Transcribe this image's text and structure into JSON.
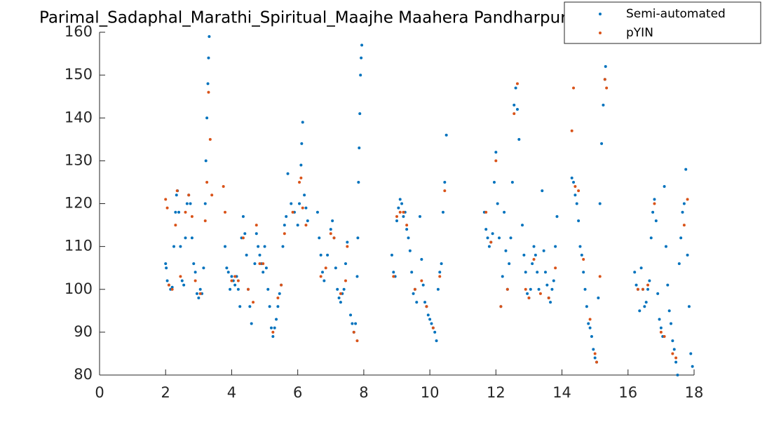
{
  "chart_data": {
    "type": "scatter",
    "title": "Parimal_Sadaphal_Marathi_Spiritual_Maajhe Maahera Pandharpur",
    "xlim": [
      0,
      18
    ],
    "xticks": [
      0,
      2,
      4,
      6,
      8,
      10,
      12,
      14,
      16,
      18
    ],
    "ylim": [
      80,
      160
    ],
    "yticks": [
      80,
      90,
      100,
      110,
      120,
      130,
      140,
      150,
      160
    ],
    "legend": "northeast",
    "series": [
      {
        "name": "Semi-automated",
        "color": "#0072BD",
        "x": [
          2.0,
          2.02,
          2.05,
          2.1,
          2.15,
          2.2,
          2.25,
          2.3,
          2.33,
          2.36,
          2.4,
          2.45,
          2.5,
          2.55,
          2.6,
          2.65,
          2.7,
          2.75,
          2.8,
          2.85,
          2.9,
          2.95,
          3.0,
          3.05,
          3.1,
          3.15,
          3.2,
          3.22,
          3.25,
          3.28,
          3.3,
          3.32,
          3.8,
          3.85,
          3.9,
          3.95,
          4.0,
          4.05,
          4.1,
          4.15,
          4.2,
          4.25,
          4.3,
          4.35,
          4.4,
          4.45,
          4.5,
          4.55,
          4.6,
          4.7,
          4.75,
          4.8,
          4.85,
          4.9,
          4.95,
          5.0,
          5.05,
          5.1,
          5.15,
          5.2,
          5.25,
          5.3,
          5.35,
          5.4,
          5.45,
          5.5,
          5.55,
          5.6,
          5.65,
          5.7,
          5.8,
          5.9,
          6.0,
          6.05,
          6.1,
          6.12,
          6.15,
          6.2,
          6.25,
          6.3,
          6.6,
          6.65,
          6.7,
          6.75,
          6.8,
          6.9,
          7.0,
          7.05,
          7.1,
          7.15,
          7.2,
          7.25,
          7.3,
          7.35,
          7.4,
          7.45,
          7.5,
          7.6,
          7.65,
          7.7,
          7.75,
          7.8,
          7.82,
          7.84,
          7.86,
          7.88,
          7.9,
          7.92,
          7.94,
          8.85,
          8.9,
          8.95,
          9.0,
          9.05,
          9.1,
          9.15,
          9.2,
          9.25,
          9.3,
          9.35,
          9.4,
          9.45,
          9.5,
          9.55,
          9.6,
          9.7,
          9.75,
          9.8,
          9.85,
          9.9,
          9.95,
          10.0,
          10.05,
          10.1,
          10.15,
          10.2,
          10.25,
          10.3,
          10.35,
          10.4,
          10.45,
          10.5,
          11.65,
          11.7,
          11.75,
          11.8,
          11.85,
          11.9,
          11.95,
          12.0,
          12.05,
          12.1,
          12.15,
          12.2,
          12.25,
          12.3,
          12.35,
          12.4,
          12.45,
          12.5,
          12.55,
          12.6,
          12.65,
          12.7,
          12.8,
          12.85,
          12.9,
          12.95,
          13.0,
          13.05,
          13.1,
          13.15,
          13.2,
          13.25,
          13.3,
          13.4,
          13.45,
          13.5,
          13.55,
          13.6,
          13.65,
          13.7,
          13.75,
          13.8,
          13.85,
          14.3,
          14.35,
          14.4,
          14.45,
          14.5,
          14.55,
          14.6,
          14.65,
          14.7,
          14.75,
          14.8,
          14.85,
          14.9,
          14.95,
          15.0,
          15.05,
          15.1,
          15.15,
          15.2,
          15.25,
          15.3,
          15.32,
          16.2,
          16.25,
          16.3,
          16.35,
          16.4,
          16.45,
          16.5,
          16.55,
          16.6,
          16.65,
          16.7,
          16.75,
          16.8,
          16.85,
          16.9,
          16.95,
          17.0,
          17.05,
          17.1,
          17.15,
          17.2,
          17.25,
          17.3,
          17.35,
          17.4,
          17.45,
          17.5,
          17.55,
          17.6,
          17.65,
          17.7,
          17.75,
          17.8,
          17.85,
          17.9,
          17.95
        ],
        "values": [
          106,
          105,
          102,
          101,
          100,
          100.5,
          110,
          118,
          122,
          123,
          118,
          110,
          102,
          101,
          112,
          120,
          122,
          120,
          112,
          106,
          104,
          99,
          98,
          100,
          99,
          105,
          120,
          130,
          140,
          148,
          154,
          159,
          110,
          105,
          104,
          100,
          103,
          102,
          101,
          103,
          100,
          96,
          112,
          117,
          113,
          108,
          100,
          96,
          92,
          106,
          113,
          110,
          108,
          106,
          104,
          110,
          105,
          100,
          96,
          91,
          89,
          91,
          93,
          96,
          99,
          101,
          110,
          115,
          117,
          127,
          120,
          118,
          115,
          120,
          129,
          134,
          139,
          122,
          119,
          116,
          118,
          112,
          108,
          104,
          102,
          108,
          114,
          116,
          112,
          105,
          100,
          98,
          97,
          99,
          100,
          106,
          111,
          94,
          92,
          90,
          92,
          103,
          112,
          125,
          133,
          141,
          150,
          154,
          157,
          108,
          104,
          103,
          116,
          119,
          121,
          120,
          117,
          118,
          114,
          112,
          109,
          104,
          99,
          100,
          97,
          117,
          107,
          101,
          97,
          96,
          94,
          93,
          92,
          91,
          90,
          88,
          100,
          104,
          106,
          118,
          125,
          136,
          118,
          114,
          112,
          110,
          111,
          113,
          125,
          132,
          120,
          112,
          96,
          103,
          118,
          109,
          100,
          106,
          112,
          125,
          143,
          147,
          142,
          135,
          115,
          108,
          104,
          99,
          98,
          100,
          106,
          110,
          108,
          104,
          100,
          123,
          109,
          104,
          101,
          98,
          97,
          100,
          102,
          110,
          117,
          126,
          125,
          122,
          120,
          116,
          110,
          108,
          104,
          100,
          96,
          92,
          91,
          89,
          86,
          84,
          83,
          98,
          120,
          134,
          143,
          149,
          152,
          104,
          101,
          100,
          95,
          105,
          100,
          96,
          97,
          100,
          102,
          112,
          118,
          121,
          116,
          99,
          93,
          91,
          89,
          124,
          110,
          101,
          95,
          92,
          88,
          86,
          83,
          80,
          106,
          112,
          118,
          120,
          128,
          108,
          96,
          85,
          82
        ]
      },
      {
        "name": "pYIN",
        "color": "#D95319",
        "x": [
          2.0,
          2.05,
          2.1,
          2.2,
          2.3,
          2.35,
          2.45,
          2.6,
          2.7,
          2.8,
          2.9,
          3.05,
          3.2,
          3.25,
          3.3,
          3.35,
          3.4,
          3.75,
          3.8,
          4.0,
          4.1,
          4.2,
          4.35,
          4.5,
          4.65,
          4.75,
          4.85,
          4.95,
          5.25,
          5.4,
          5.5,
          5.6,
          5.85,
          6.05,
          6.1,
          6.15,
          6.25,
          6.7,
          6.85,
          7.0,
          7.1,
          7.3,
          7.45,
          7.5,
          7.7,
          7.8,
          8.9,
          9.0,
          9.1,
          9.2,
          9.3,
          9.55,
          9.75,
          9.9,
          10.1,
          10.3,
          10.45,
          11.7,
          11.85,
          12.0,
          12.15,
          12.35,
          12.55,
          12.65,
          12.9,
          13.0,
          13.15,
          13.35,
          13.6,
          13.8,
          14.3,
          14.35,
          14.4,
          14.5,
          14.65,
          14.85,
          15.0,
          15.05,
          15.15,
          15.3,
          15.35,
          16.3,
          16.45,
          16.6,
          16.8,
          17.0,
          17.1,
          17.35,
          17.45,
          17.7,
          17.8
        ],
        "values": [
          121,
          119,
          101,
          100,
          115,
          123,
          103,
          118,
          122,
          117,
          102,
          99,
          116,
          125,
          146,
          135,
          122,
          124,
          118,
          102,
          103,
          102,
          112,
          100,
          97,
          115,
          106,
          106,
          90,
          98,
          101,
          113,
          118,
          125,
          126,
          119,
          115,
          103,
          105,
          113,
          112,
          99,
          102,
          110,
          90,
          88,
          103,
          117,
          118,
          118,
          115,
          100,
          102,
          96,
          91,
          103,
          123,
          118,
          111,
          130,
          96,
          100,
          141,
          148,
          100,
          98,
          107,
          99,
          98,
          105,
          137,
          147,
          124,
          123,
          107,
          93,
          85,
          83,
          103,
          149,
          147,
          100,
          100,
          101,
          120,
          90,
          89,
          85,
          84,
          115,
          121
        ]
      }
    ]
  }
}
